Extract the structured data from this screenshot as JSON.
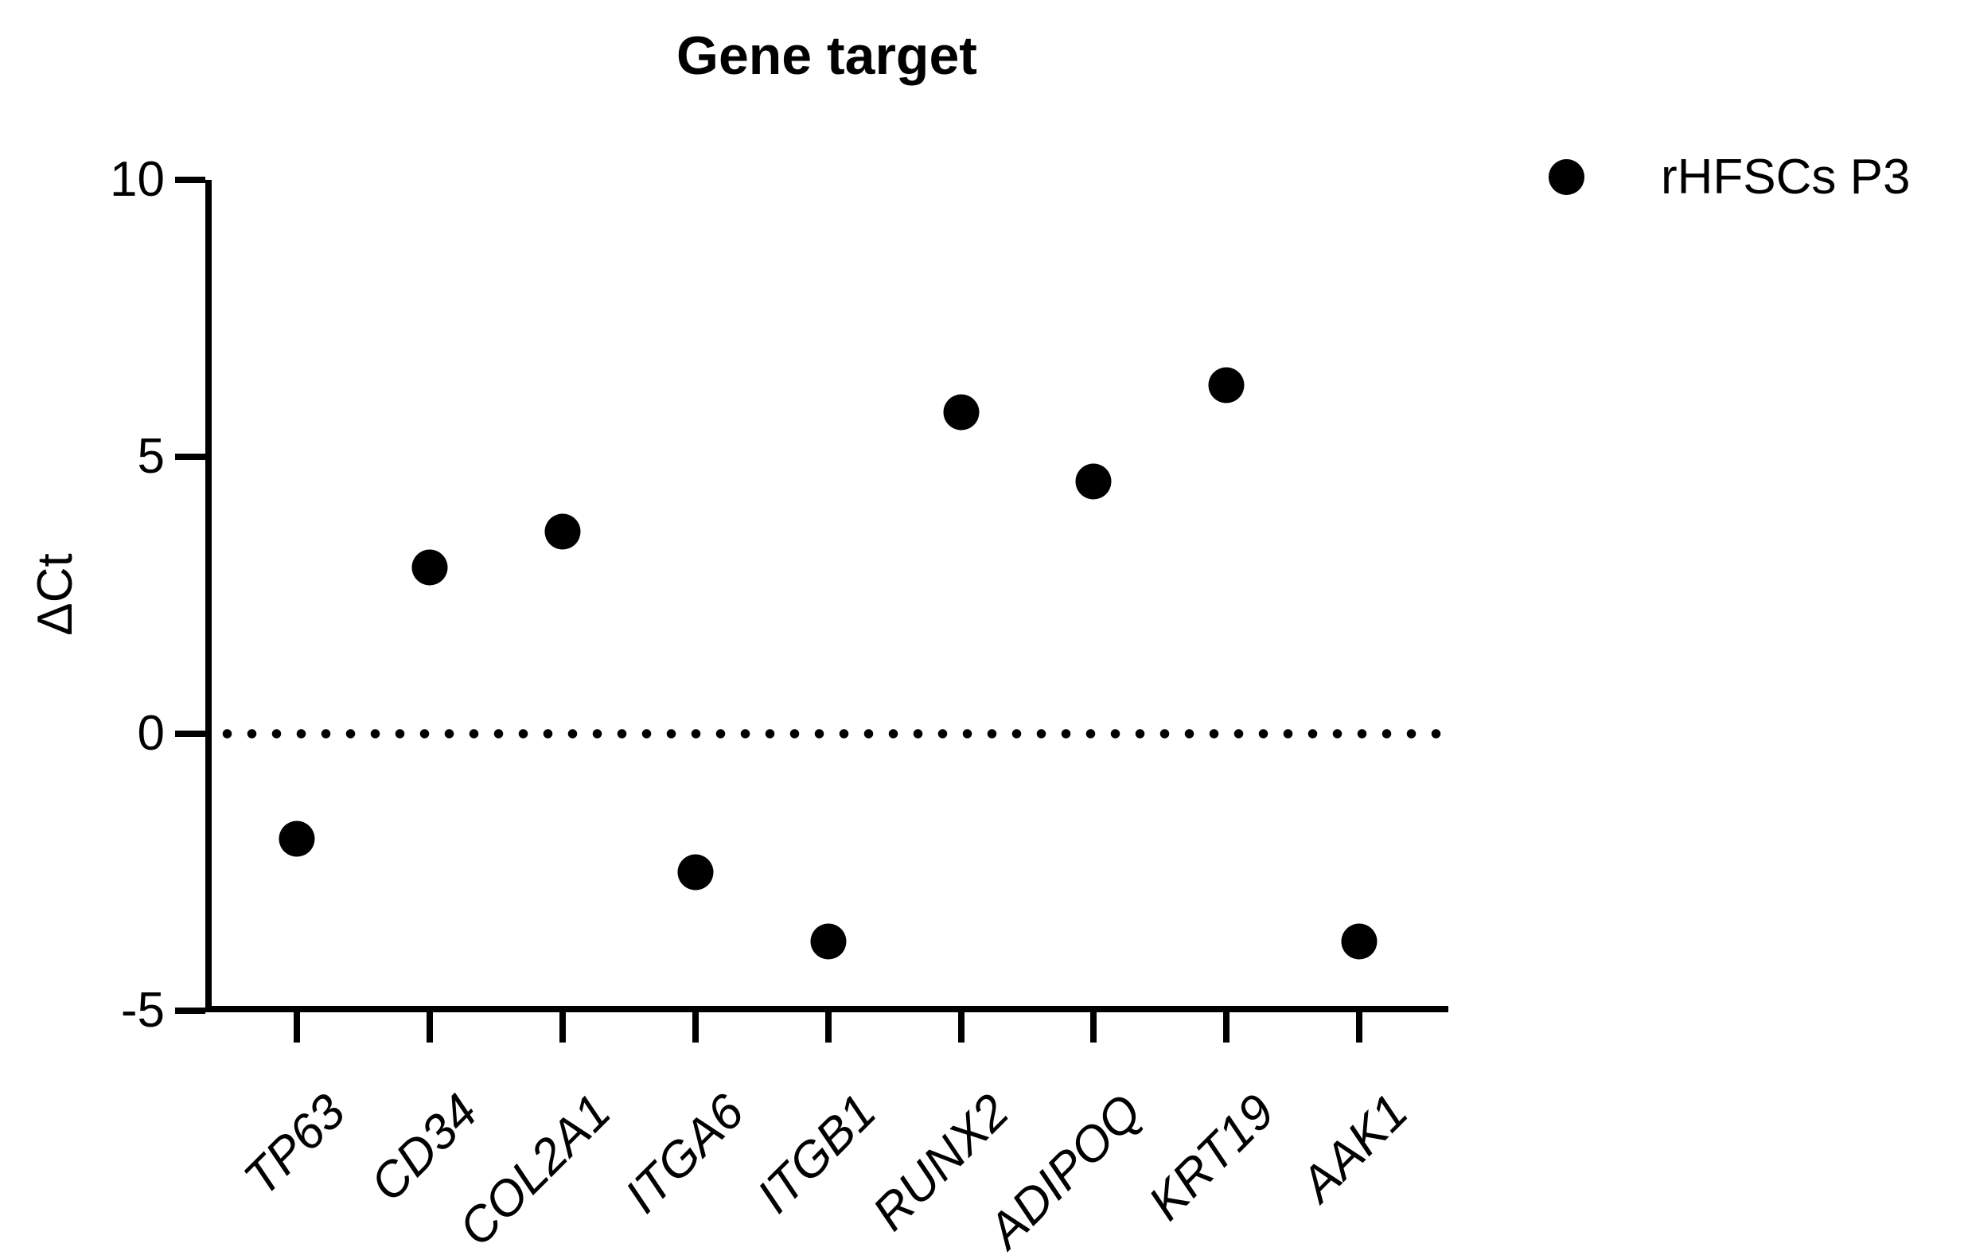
{
  "chart_data": {
    "type": "scatter",
    "title": "Gene target",
    "ylabel": "ΔCt",
    "xlabel": "",
    "categories": [
      "TP63",
      "CD34",
      "COL2A1",
      "ITGA6",
      "ITGB1",
      "RUNX2",
      "ADIPOQ",
      "KRT19",
      "AAK1"
    ],
    "series": [
      {
        "name": "rHFSCs P3",
        "marker": "filled-circle",
        "color": "#000000",
        "values": [
          -1.9,
          3.0,
          3.65,
          -2.5,
          -3.75,
          5.8,
          4.55,
          6.3,
          -3.75
        ]
      }
    ],
    "yticks": [
      "10",
      "5",
      "0",
      "-5"
    ],
    "ylim": [
      -5,
      10
    ],
    "reference_line": {
      "y": 0,
      "style": "dotted",
      "color": "#000000"
    },
    "legend": {
      "position": "top-right",
      "entries": [
        "rHFSCs P3"
      ]
    },
    "grid": false,
    "background": "#ffffff",
    "axis_color": "#000000",
    "x_label_style": "italic, rotated 45deg"
  }
}
